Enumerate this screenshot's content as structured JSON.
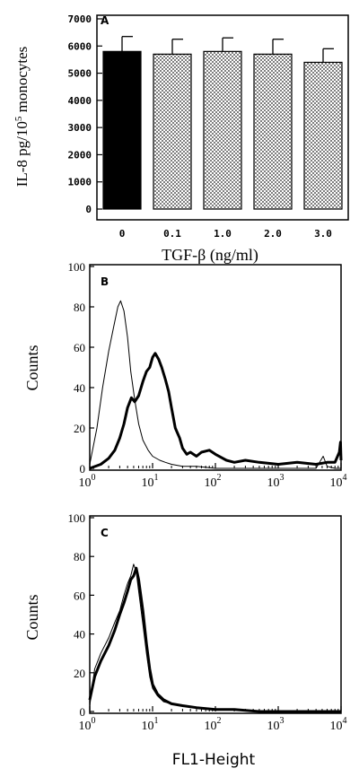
{
  "chart_data": [
    {
      "panel": "A",
      "type": "bar",
      "categories": [
        "0",
        "0.1",
        "1.0",
        "2.0",
        "3.0"
      ],
      "values": [
        5800,
        5700,
        5800,
        5700,
        5400
      ],
      "errors": [
        550,
        550,
        500,
        550,
        500
      ],
      "fills": [
        "solid-black",
        "dotted",
        "dotted",
        "dotted",
        "dotted"
      ],
      "xlabel": "TGF-β (ng/ml)",
      "ylabel_main": "IL-8 pg/10",
      "ylabel_sup": "5",
      "ylabel_tail": " monocytes",
      "ylim": [
        0,
        7000
      ],
      "yticks": [
        "0",
        "1000",
        "2000",
        "3000",
        "4000",
        "5000",
        "6000",
        "7000"
      ]
    },
    {
      "panel": "B",
      "type": "line",
      "xscale": "log",
      "xlim": [
        1,
        10000
      ],
      "ylim": [
        0,
        100
      ],
      "ylabel": "Counts",
      "xlabel": "",
      "yticks": [
        "0",
        "20",
        "40",
        "60",
        "80",
        "100"
      ],
      "xtick_exponents": [
        "0",
        "1",
        "2",
        "3",
        "4"
      ],
      "series": [
        {
          "style": "thin",
          "x": [
            1.0,
            1.3,
            1.6,
            2.0,
            2.4,
            2.8,
            3.1,
            3.5,
            4.0,
            4.5,
            5.2,
            6.0,
            7.0,
            8.5,
            10,
            13,
            16,
            20,
            30,
            50,
            100,
            1000,
            4000,
            5200,
            6000,
            8000,
            10000
          ],
          "y": [
            2,
            20,
            40,
            58,
            70,
            80,
            83,
            78,
            65,
            48,
            34,
            22,
            14,
            9,
            6,
            4,
            3,
            2,
            1,
            1,
            0,
            0,
            0,
            6,
            1,
            0,
            0
          ]
        },
        {
          "style": "thick",
          "x": [
            1.0,
            1.5,
            2.0,
            2.5,
            3.0,
            3.5,
            4.0,
            4.6,
            5.2,
            6.0,
            7.0,
            8.0,
            9.0,
            10,
            11,
            12.5,
            14,
            16,
            18,
            20,
            23,
            27,
            30,
            35,
            40,
            50,
            60,
            80,
            100,
            150,
            200,
            300,
            500,
            1000,
            2000,
            4000,
            6000,
            8000,
            9400,
            9800,
            10000
          ],
          "y": [
            0,
            2,
            5,
            9,
            15,
            22,
            30,
            35,
            33,
            36,
            43,
            48,
            50,
            55,
            57,
            54,
            50,
            44,
            38,
            30,
            20,
            15,
            10,
            7,
            8,
            6,
            8,
            9,
            7,
            4,
            3,
            4,
            3,
            2,
            3,
            2,
            3,
            3,
            8,
            13,
            4
          ]
        }
      ]
    },
    {
      "panel": "C",
      "type": "line",
      "xscale": "log",
      "xlim": [
        1,
        10000
      ],
      "ylim": [
        0,
        100
      ],
      "ylabel": "Counts",
      "xlabel": "FL1-Height",
      "yticks": [
        "0",
        "20",
        "40",
        "60",
        "80",
        "100"
      ],
      "xtick_exponents": [
        "0",
        "1",
        "2",
        "3",
        "4"
      ],
      "series": [
        {
          "style": "thin",
          "x": [
            1.0,
            1.2,
            1.5,
            2.0,
            2.5,
            3.0,
            3.5,
            4.0,
            4.5,
            5.0,
            5.5,
            6.0,
            7.0,
            8.0,
            9.0,
            10,
            12,
            15,
            20,
            30,
            50,
            100,
            200,
            500,
            1000,
            10000
          ],
          "y": [
            3,
            22,
            30,
            38,
            46,
            52,
            60,
            66,
            70,
            76,
            72,
            62,
            45,
            30,
            18,
            12,
            8,
            5,
            4,
            3,
            2,
            1,
            1,
            0,
            0,
            0
          ]
        },
        {
          "style": "thick",
          "x": [
            1.0,
            1.2,
            1.5,
            2.0,
            2.5,
            3.0,
            3.5,
            4.0,
            4.5,
            5.0,
            5.5,
            6.0,
            7.0,
            8.0,
            9.0,
            10,
            12,
            15,
            20,
            30,
            50,
            100,
            200,
            500,
            1000,
            10000
          ],
          "y": [
            6,
            18,
            26,
            34,
            42,
            50,
            56,
            62,
            68,
            70,
            74,
            68,
            52,
            35,
            22,
            14,
            9,
            6,
            4,
            3,
            2,
            1,
            1,
            0,
            0,
            0
          ]
        }
      ]
    }
  ]
}
